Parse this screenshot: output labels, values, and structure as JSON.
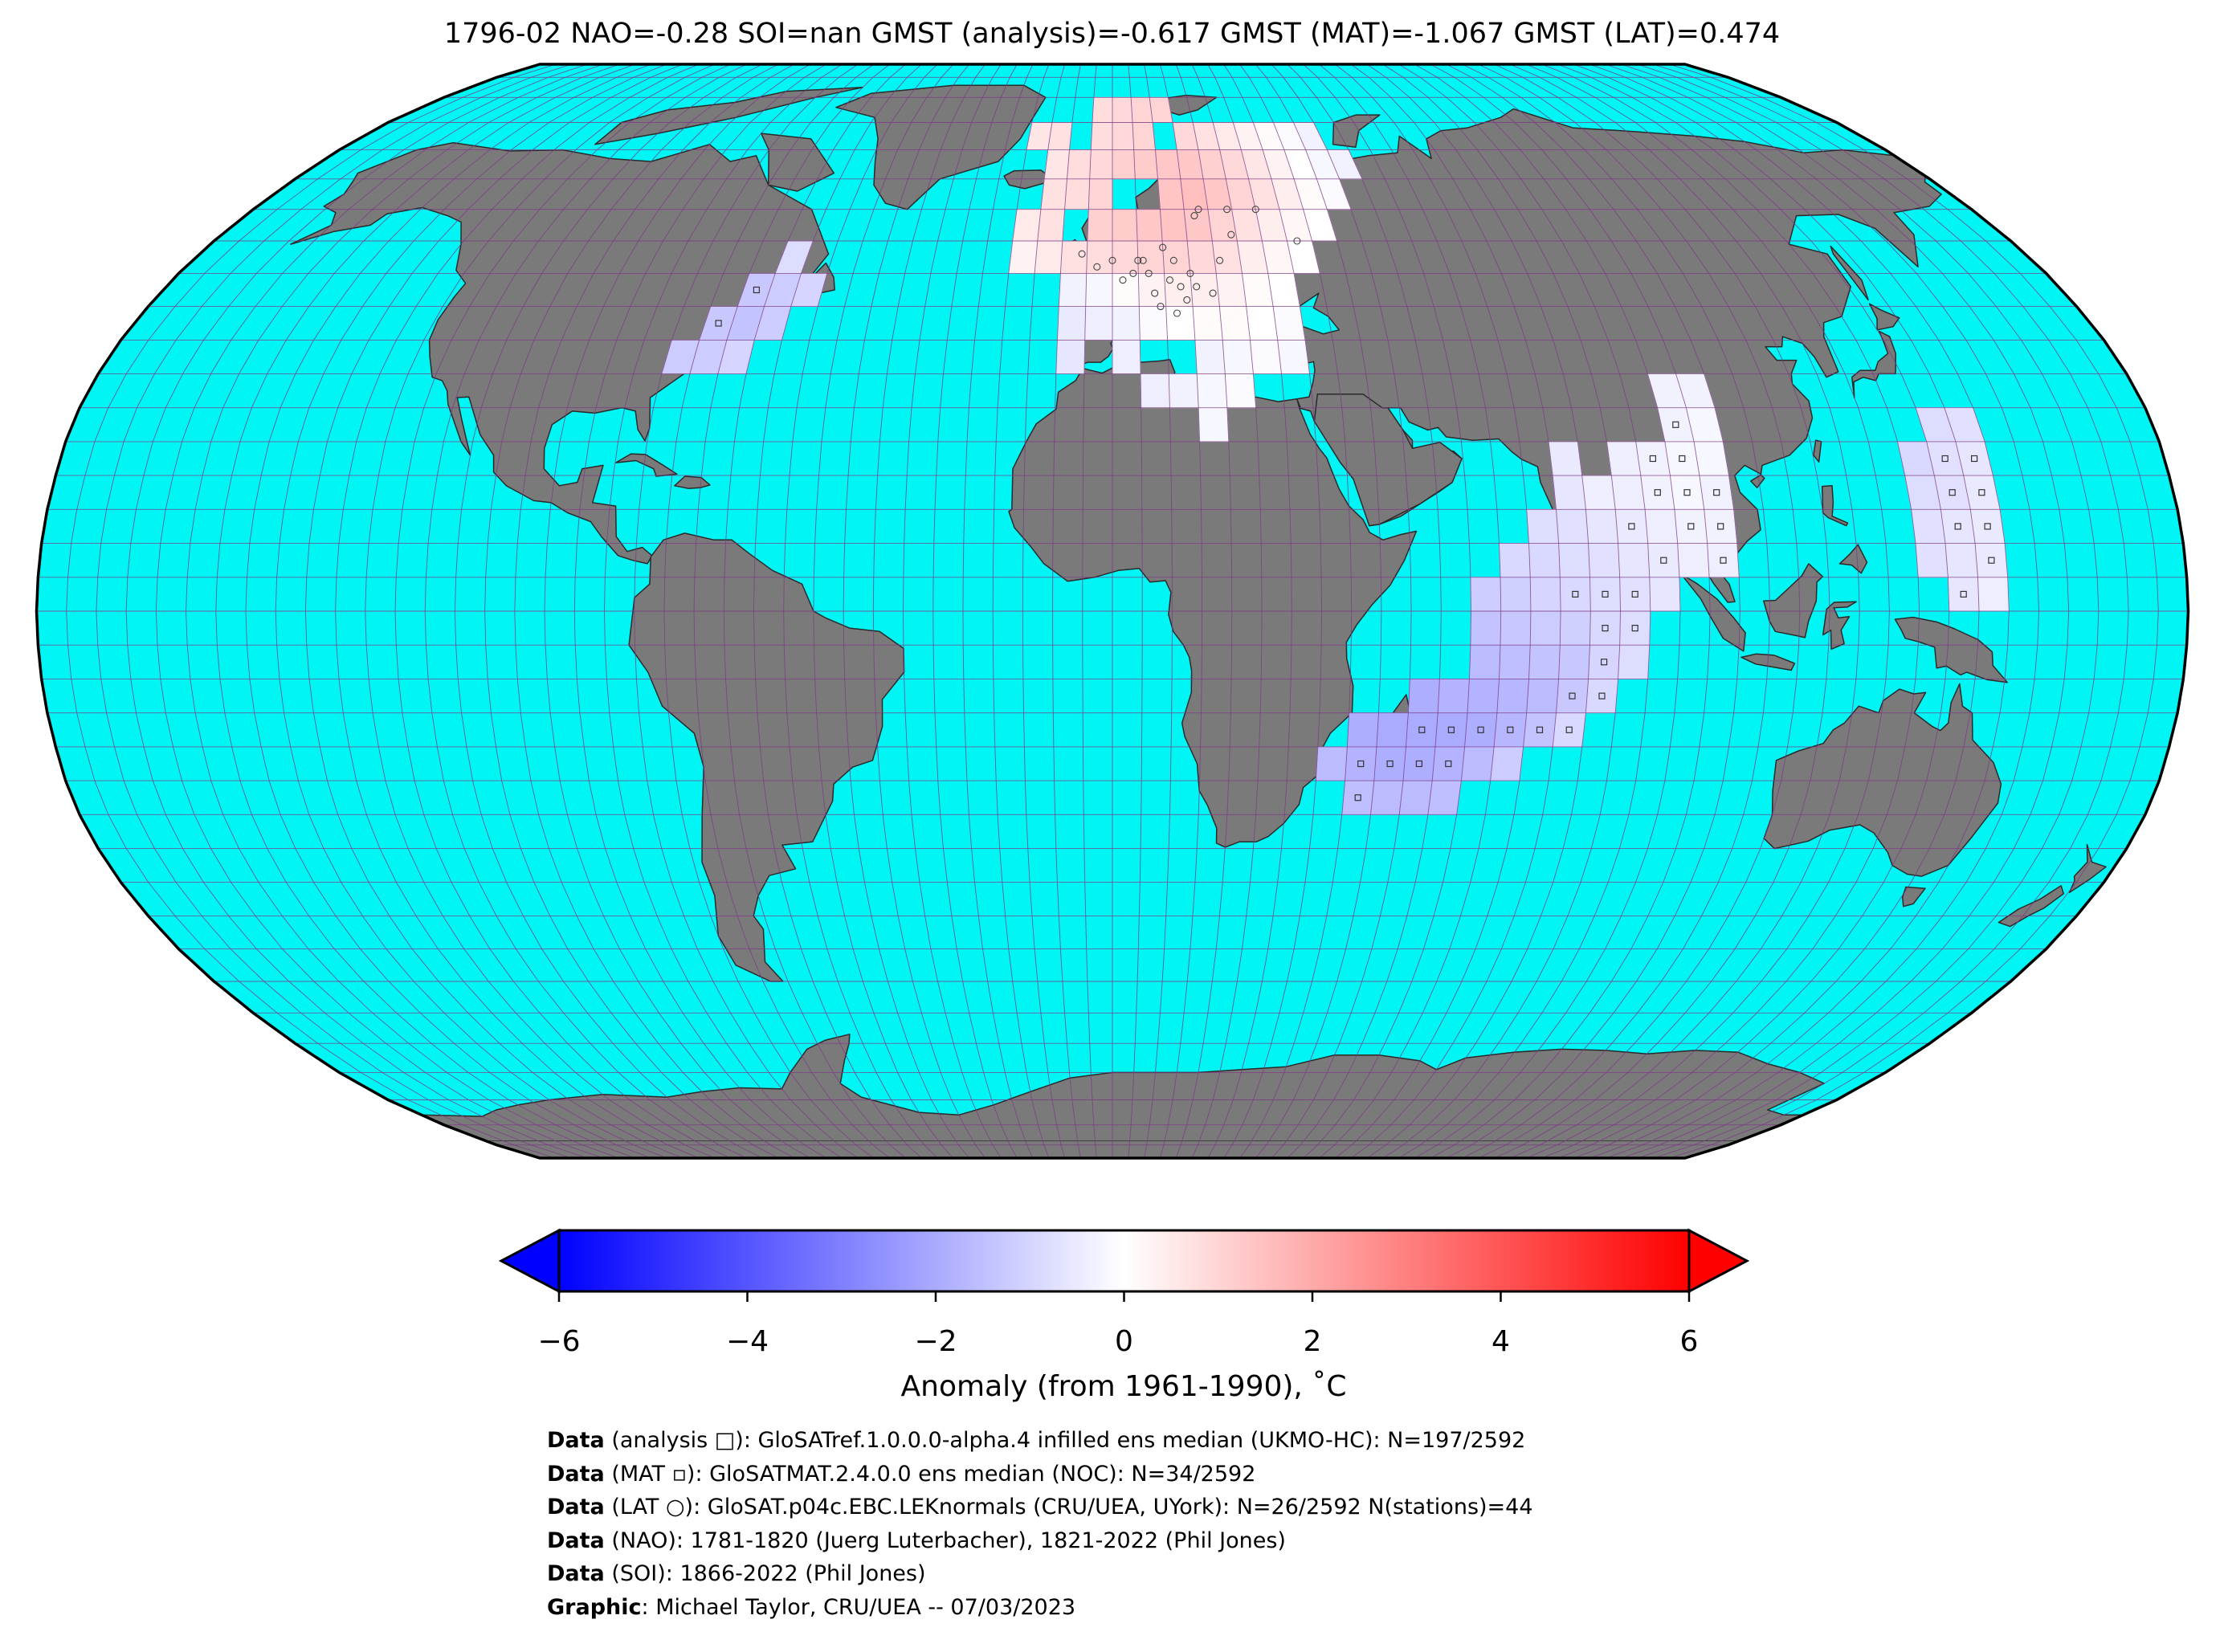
{
  "title": "1796-02 NAO=-0.28 SOI=nan GMST (analysis)=-0.617 GMST (MAT)=-1.067 GMST (LAT)=0.474",
  "colors": {
    "ocean": "#00f5f5",
    "land": "#7a7a7a",
    "graticule": "#7d3a86",
    "outline": "#000000",
    "cmap_low": "#0000ff",
    "cmap_mid": "#ffffff",
    "cmap_high": "#ff0000"
  },
  "projection": "Robinson",
  "colorbar": {
    "label": "Anomaly (from 1961-1990), ˚C",
    "vmin": -6,
    "vmax": 6,
    "extend": "both",
    "ticks": [
      "−6",
      "−4",
      "−2",
      "0",
      "2",
      "4",
      "6"
    ]
  },
  "anomaly_cells_lonlat_value": [
    [
      -80,
      35,
      -1.2
    ],
    [
      -75,
      35,
      -1.2
    ],
    [
      -70,
      35,
      -1.0
    ],
    [
      -75,
      40,
      -1.3
    ],
    [
      -70,
      40,
      -1.4
    ],
    [
      -65,
      40,
      -1.2
    ],
    [
      -70,
      45,
      -1.3
    ],
    [
      -65,
      45,
      -1.2
    ],
    [
      -60,
      45,
      -1.0
    ],
    [
      -65,
      50,
      -0.8
    ],
    [
      -5,
      75,
      0.8
    ],
    [
      0,
      75,
      0.9
    ],
    [
      5,
      75,
      1.0
    ],
    [
      10,
      75,
      1.0
    ],
    [
      -20,
      70,
      0.6
    ],
    [
      -15,
      70,
      0.7
    ],
    [
      -5,
      70,
      0.8
    ],
    [
      0,
      70,
      0.9
    ],
    [
      5,
      70,
      1.0
    ],
    [
      15,
      70,
      0.9
    ],
    [
      20,
      70,
      0.7
    ],
    [
      25,
      70,
      0.5
    ],
    [
      30,
      70,
      0.3
    ],
    [
      35,
      70,
      0.1
    ],
    [
      40,
      70,
      -0.1
    ],
    [
      45,
      70,
      -0.3
    ],
    [
      -15,
      65,
      0.6
    ],
    [
      -10,
      65,
      0.8
    ],
    [
      -5,
      65,
      0.9
    ],
    [
      0,
      65,
      1.1
    ],
    [
      5,
      65,
      1.2
    ],
    [
      10,
      65,
      1.3
    ],
    [
      15,
      65,
      1.3
    ],
    [
      20,
      65,
      1.1
    ],
    [
      25,
      65,
      0.9
    ],
    [
      30,
      65,
      0.6
    ],
    [
      35,
      65,
      0.3
    ],
    [
      40,
      65,
      0.0
    ],
    [
      45,
      65,
      -0.2
    ],
    [
      50,
      65,
      -0.3
    ],
    [
      -15,
      60,
      0.7
    ],
    [
      -10,
      60,
      0.8
    ],
    [
      -5,
      60,
      1.0
    ],
    [
      10,
      60,
      1.4
    ],
    [
      15,
      60,
      1.5
    ],
    [
      20,
      60,
      1.3
    ],
    [
      25,
      60,
      1.0
    ],
    [
      30,
      60,
      0.7
    ],
    [
      35,
      60,
      0.4
    ],
    [
      40,
      60,
      0.1
    ],
    [
      45,
      60,
      -0.1
    ],
    [
      -20,
      55,
      0.5
    ],
    [
      -15,
      55,
      0.7
    ],
    [
      -5,
      55,
      1.1
    ],
    [
      0,
      55,
      1.2
    ],
    [
      5,
      55,
      1.3
    ],
    [
      10,
      55,
      1.4
    ],
    [
      15,
      55,
      1.3
    ],
    [
      20,
      55,
      1.0
    ],
    [
      25,
      55,
      0.7
    ],
    [
      30,
      55,
      0.4
    ],
    [
      35,
      55,
      0.2
    ],
    [
      40,
      55,
      0.0
    ],
    [
      -20,
      50,
      0.3
    ],
    [
      -15,
      50,
      0.5
    ],
    [
      -10,
      50,
      0.7
    ],
    [
      -5,
      50,
      0.8
    ],
    [
      0,
      50,
      0.9
    ],
    [
      5,
      50,
      1.0
    ],
    [
      10,
      50,
      1.0
    ],
    [
      15,
      50,
      0.9
    ],
    [
      20,
      50,
      0.7
    ],
    [
      25,
      50,
      0.4
    ],
    [
      30,
      50,
      0.2
    ],
    [
      35,
      50,
      0.0
    ],
    [
      -10,
      45,
      -0.3
    ],
    [
      -5,
      45,
      -0.2
    ],
    [
      0,
      45,
      0.1
    ],
    [
      5,
      45,
      0.3
    ],
    [
      10,
      45,
      0.4
    ],
    [
      15,
      45,
      0.4
    ],
    [
      20,
      45,
      0.3
    ],
    [
      25,
      45,
      0.1
    ],
    [
      30,
      45,
      0.0
    ],
    [
      -10,
      40,
      -0.5
    ],
    [
      -5,
      40,
      -0.4
    ],
    [
      0,
      40,
      -0.3
    ],
    [
      5,
      40,
      -0.1
    ],
    [
      10,
      40,
      0.0
    ],
    [
      15,
      40,
      0.1
    ],
    [
      20,
      40,
      0.1
    ],
    [
      25,
      40,
      0.0
    ],
    [
      30,
      40,
      -0.1
    ],
    [
      -10,
      35,
      -0.6
    ],
    [
      0,
      35,
      -0.4
    ],
    [
      15,
      35,
      -0.3
    ],
    [
      20,
      35,
      -0.2
    ],
    [
      25,
      35,
      -0.1
    ],
    [
      30,
      35,
      -0.2
    ],
    [
      5,
      30,
      -0.4
    ],
    [
      10,
      30,
      -0.3
    ],
    [
      15,
      30,
      -0.2
    ],
    [
      20,
      30,
      -0.1
    ],
    [
      15,
      25,
      -0.2
    ],
    [
      95,
      30,
      -0.3
    ],
    [
      100,
      30,
      -0.3
    ],
    [
      95,
      25,
      -0.3
    ],
    [
      100,
      25,
      -0.2
    ],
    [
      75,
      20,
      -0.5
    ],
    [
      85,
      20,
      -0.4
    ],
    [
      90,
      20,
      -0.3
    ],
    [
      95,
      20,
      -0.2
    ],
    [
      100,
      20,
      -0.2
    ],
    [
      75,
      15,
      -0.6
    ],
    [
      80,
      15,
      -0.4
    ],
    [
      85,
      15,
      -0.4
    ],
    [
      90,
      15,
      -0.3
    ],
    [
      95,
      15,
      -0.2
    ],
    [
      100,
      15,
      -0.3
    ],
    [
      70,
      10,
      -0.8
    ],
    [
      75,
      10,
      -0.7
    ],
    [
      80,
      10,
      -0.6
    ],
    [
      85,
      10,
      -0.5
    ],
    [
      90,
      10,
      -0.4
    ],
    [
      95,
      10,
      -0.3
    ],
    [
      100,
      10,
      -0.3
    ],
    [
      65,
      5,
      -0.9
    ],
    [
      70,
      5,
      -0.9
    ],
    [
      75,
      5,
      -0.8
    ],
    [
      80,
      5,
      -0.7
    ],
    [
      85,
      5,
      -0.6
    ],
    [
      90,
      5,
      -0.5
    ],
    [
      95,
      5,
      -0.4
    ],
    [
      100,
      5,
      -0.4
    ],
    [
      60,
      0,
      -1.2
    ],
    [
      65,
      0,
      -1.1
    ],
    [
      70,
      0,
      -1.0
    ],
    [
      75,
      0,
      -0.9
    ],
    [
      80,
      0,
      -0.8
    ],
    [
      85,
      0,
      -0.7
    ],
    [
      90,
      0,
      -0.6
    ],
    [
      60,
      -5,
      -1.4
    ],
    [
      65,
      -5,
      -1.3
    ],
    [
      70,
      -5,
      -1.2
    ],
    [
      75,
      -5,
      -1.1
    ],
    [
      80,
      -5,
      -0.9
    ],
    [
      85,
      -5,
      -0.8
    ],
    [
      60,
      -10,
      -1.6
    ],
    [
      65,
      -10,
      -1.5
    ],
    [
      70,
      -10,
      -1.4
    ],
    [
      75,
      -10,
      -1.3
    ],
    [
      80,
      -10,
      -1.0
    ],
    [
      85,
      -10,
      -0.8
    ],
    [
      50,
      -15,
      -1.9
    ],
    [
      55,
      -15,
      -1.8
    ],
    [
      60,
      -15,
      -1.8
    ],
    [
      65,
      -15,
      -1.7
    ],
    [
      70,
      -15,
      -1.6
    ],
    [
      75,
      -15,
      -1.3
    ],
    [
      80,
      -15,
      -0.9
    ],
    [
      40,
      -20,
      -1.9
    ],
    [
      45,
      -20,
      -2.0
    ],
    [
      50,
      -20,
      -2.0
    ],
    [
      55,
      -20,
      -2.0
    ],
    [
      60,
      -20,
      -1.9
    ],
    [
      65,
      -20,
      -1.7
    ],
    [
      70,
      -20,
      -1.4
    ],
    [
      75,
      -20,
      -0.9
    ],
    [
      35,
      -25,
      -1.6
    ],
    [
      40,
      -25,
      -1.8
    ],
    [
      45,
      -25,
      -1.9
    ],
    [
      50,
      -25,
      -1.9
    ],
    [
      55,
      -25,
      -1.8
    ],
    [
      60,
      -25,
      -1.6
    ],
    [
      65,
      -25,
      -1.2
    ],
    [
      40,
      -30,
      -1.5
    ],
    [
      45,
      -30,
      -1.6
    ],
    [
      50,
      -30,
      -1.6
    ],
    [
      55,
      -30,
      -1.5
    ],
    [
      140,
      25,
      -0.8
    ],
    [
      145,
      25,
      -0.7
    ],
    [
      135,
      20,
      -0.9
    ],
    [
      140,
      20,
      -0.7
    ],
    [
      145,
      20,
      -0.6
    ],
    [
      135,
      15,
      -0.8
    ],
    [
      140,
      15,
      -0.7
    ],
    [
      145,
      15,
      -0.5
    ],
    [
      135,
      10,
      -0.7
    ],
    [
      140,
      10,
      -0.6
    ],
    [
      145,
      10,
      -0.5
    ],
    [
      135,
      5,
      -0.7
    ],
    [
      140,
      5,
      -0.6
    ],
    [
      145,
      5,
      -0.5
    ],
    [
      140,
      0,
      -0.6
    ],
    [
      145,
      0,
      -0.4
    ]
  ],
  "analysis_markers_lonlat": [
    [
      -75,
      40
    ],
    [
      -70,
      45
    ],
    [
      95,
      25
    ],
    [
      90,
      20
    ],
    [
      95,
      20
    ],
    [
      90,
      15
    ],
    [
      95,
      15
    ],
    [
      100,
      15
    ],
    [
      85,
      10
    ],
    [
      95,
      10
    ],
    [
      100,
      10
    ],
    [
      90,
      5
    ],
    [
      100,
      5
    ],
    [
      75,
      0
    ],
    [
      80,
      0
    ],
    [
      85,
      0
    ],
    [
      80,
      -5
    ],
    [
      85,
      -5
    ],
    [
      80,
      -10
    ],
    [
      75,
      -15
    ],
    [
      80,
      -15
    ],
    [
      70,
      -20
    ],
    [
      75,
      -20
    ],
    [
      50,
      -20
    ],
    [
      55,
      -20
    ],
    [
      60,
      -20
    ],
    [
      65,
      -20
    ],
    [
      40,
      -25
    ],
    [
      45,
      -25
    ],
    [
      50,
      -25
    ],
    [
      55,
      -25
    ],
    [
      40,
      -30
    ],
    [
      140,
      20
    ],
    [
      145,
      20
    ],
    [
      140,
      15
    ],
    [
      145,
      15
    ],
    [
      140,
      10
    ],
    [
      145,
      10
    ],
    [
      145,
      5
    ],
    [
      140,
      0
    ]
  ],
  "station_markers_lonlat": [
    [
      -3,
      51
    ],
    [
      0,
      52
    ],
    [
      2,
      49
    ],
    [
      5,
      52
    ],
    [
      7,
      50
    ],
    [
      8,
      47
    ],
    [
      10,
      54
    ],
    [
      12,
      52
    ],
    [
      13,
      48
    ],
    [
      15,
      50
    ],
    [
      17,
      59
    ],
    [
      18,
      60
    ],
    [
      24,
      60
    ],
    [
      30,
      60
    ],
    [
      6,
      52
    ],
    [
      4,
      50
    ],
    [
      11,
      49
    ],
    [
      16,
      48
    ],
    [
      19,
      47
    ],
    [
      14,
      46
    ],
    [
      9,
      45
    ],
    [
      12,
      44
    ],
    [
      24,
      56
    ],
    [
      -6,
      53
    ],
    [
      21,
      52
    ],
    [
      37,
      55
    ]
  ],
  "credits": [
    {
      "bold": "Data",
      "text": " (analysis □): GloSATref.1.0.0.0-alpha.4 infilled ens median (UKMO-HC): N=197/2592"
    },
    {
      "bold": "Data",
      "text": " (MAT ▫): GloSATMAT.2.4.0.0 ens median (NOC): N=34/2592"
    },
    {
      "bold": "Data",
      "text": " (LAT ○): GloSAT.p04c.EBC.LEKnormals (CRU/UEA, UYork): N=26/2592 N(stations)=44"
    },
    {
      "bold": "Data",
      "text": " (NAO): 1781-1820 (Juerg Luterbacher), 1821-2022 (Phil Jones)"
    },
    {
      "bold": "Data",
      "text": " (SOI): 1866-2022 (Phil Jones)"
    },
    {
      "bold": "Graphic",
      "text": ": Michael Taylor, CRU/UEA -- 07/03/2023"
    }
  ]
}
